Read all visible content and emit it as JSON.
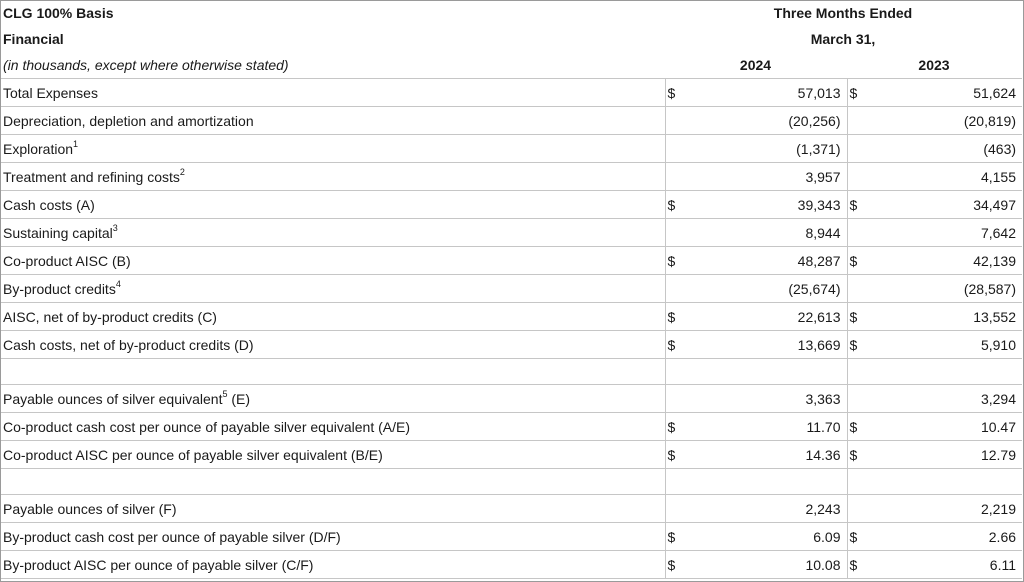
{
  "header": {
    "title": "CLG 100% Basis",
    "subtitle": "Financial",
    "note": "(in thousands, except where otherwise stated)",
    "period_line1": "Three Months Ended",
    "period_line2": "March 31,",
    "col_2024": "2024",
    "col_2023": "2023"
  },
  "rows": {
    "r1": {
      "label": "Total Expenses",
      "sup": "",
      "cur1": "$",
      "v2024": "57,013",
      "cur2": "$",
      "v2023": "51,624"
    },
    "r2": {
      "label": "Depreciation, depletion and amortization",
      "sup": "",
      "cur1": "",
      "v2024": "(20,256)",
      "cur2": "",
      "v2023": "(20,819)"
    },
    "r3": {
      "label": "Exploration",
      "sup": "1",
      "cur1": "",
      "v2024": "(1,371)",
      "cur2": "",
      "v2023": "(463)"
    },
    "r4": {
      "label": "Treatment and refining costs",
      "sup": "2",
      "cur1": "",
      "v2024": "3,957",
      "cur2": "",
      "v2023": "4,155"
    },
    "r5": {
      "label": "Cash costs (A)",
      "sup": "",
      "cur1": "$",
      "v2024": "39,343",
      "cur2": "$",
      "v2023": "34,497"
    },
    "r6": {
      "label": "Sustaining capital",
      "sup": "3",
      "cur1": "",
      "v2024": "8,944",
      "cur2": "",
      "v2023": "7,642"
    },
    "r7": {
      "label": "Co-product AISC (B)",
      "sup": "",
      "cur1": "$",
      "v2024": "48,287",
      "cur2": "$",
      "v2023": "42,139"
    },
    "r8": {
      "label": "By-product credits",
      "sup": "4",
      "cur1": "",
      "v2024": "(25,674)",
      "cur2": "",
      "v2023": "(28,587)"
    },
    "r9": {
      "label": "AISC, net of by-product credits (C)",
      "sup": "",
      "cur1": "$",
      "v2024": "22,613",
      "cur2": "$",
      "v2023": "13,552"
    },
    "r10": {
      "label": "Cash costs, net of by-product credits (D)",
      "sup": "",
      "cur1": "$",
      "v2024": "13,669",
      "cur2": "$",
      "v2023": "5,910"
    },
    "r11": {
      "label": "Payable ounces of silver equivalent",
      "sup": "5",
      "label_suffix": " (E)",
      "cur1": "",
      "v2024": "3,363",
      "cur2": "",
      "v2023": "3,294"
    },
    "r12": {
      "label": "Co-product cash cost per ounce of payable silver equivalent (A/E)",
      "sup": "",
      "cur1": "$",
      "v2024": "11.70",
      "cur2": "$",
      "v2023": "10.47"
    },
    "r13": {
      "label": "Co-product AISC per ounce of payable silver equivalent (B/E)",
      "sup": "",
      "cur1": "$",
      "v2024": "14.36",
      "cur2": "$",
      "v2023": "12.79"
    },
    "r14": {
      "label": "Payable ounces of silver (F)",
      "sup": "",
      "cur1": "",
      "v2024": "2,243",
      "cur2": "",
      "v2023": "2,219"
    },
    "r15": {
      "label": "By-product cash cost per ounce of payable silver (D/F)",
      "sup": "",
      "cur1": "$",
      "v2024": "6.09",
      "cur2": "$",
      "v2023": "2.66"
    },
    "r16": {
      "label": "By-product AISC per ounce of payable silver (C/F)",
      "sup": "",
      "cur1": "$",
      "v2024": "10.08",
      "cur2": "$",
      "v2023": "6.11"
    }
  }
}
